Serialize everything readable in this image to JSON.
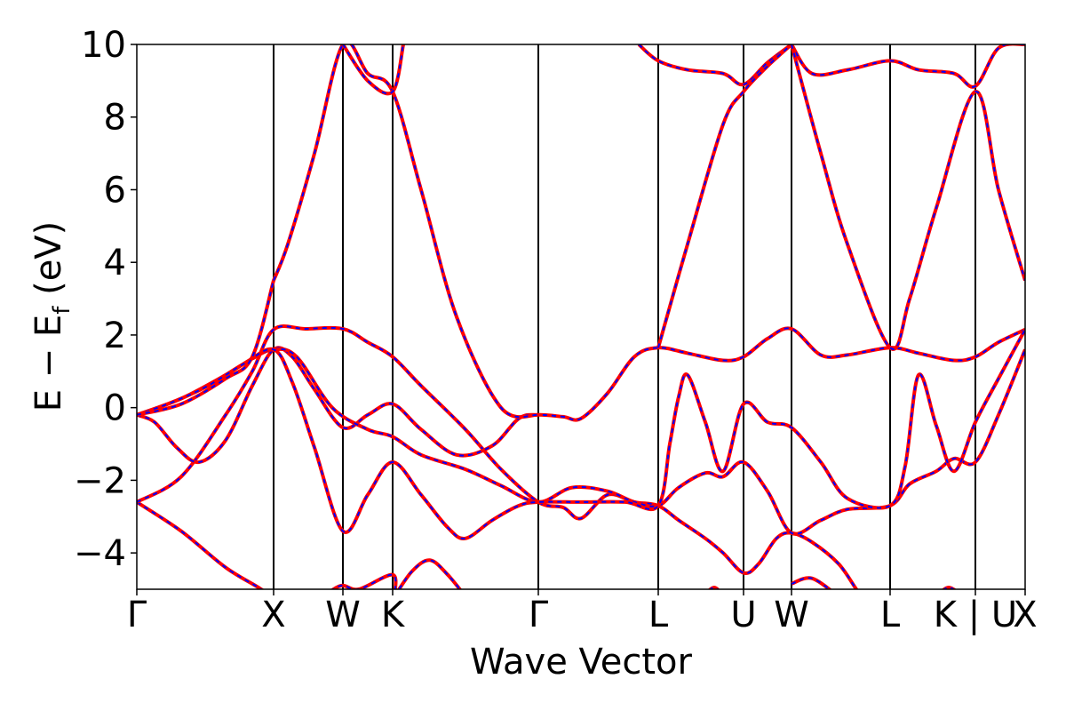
{
  "chart_data": {
    "type": "line",
    "title": "",
    "xlabel": "Wave Vector",
    "ylabel": {
      "main": "E − E",
      "sub": "f",
      "unit": " (eV)"
    },
    "ylim": [
      -5,
      10
    ],
    "xlim": [
      0,
      1
    ],
    "y_ticks": [
      {
        "value": -4,
        "label": "−4"
      },
      {
        "value": -2,
        "label": "−2"
      },
      {
        "value": 0,
        "label": "0"
      },
      {
        "value": 2,
        "label": "2"
      },
      {
        "value": 4,
        "label": "4"
      },
      {
        "value": 6,
        "label": "6"
      },
      {
        "value": 8,
        "label": "8"
      },
      {
        "value": 10,
        "label": "10"
      }
    ],
    "kpoints": [
      {
        "label": "Γ",
        "x": 0.0
      },
      {
        "label": "X",
        "x": 0.154
      },
      {
        "label": "W",
        "x": 0.232
      },
      {
        "label": "K",
        "x": 0.288
      },
      {
        "label": "Γ",
        "x": 0.452
      },
      {
        "label": "L",
        "x": 0.587
      },
      {
        "label": "U",
        "x": 0.683
      },
      {
        "label": "W",
        "x": 0.737
      },
      {
        "label": "L",
        "x": 0.848
      },
      {
        "label": "K | U",
        "x": 0.944
      },
      {
        "label": "X",
        "x": 1.0
      }
    ],
    "line_colors": {
      "outer": "#ff0000",
      "inner": "#0000ff"
    },
    "bands": [
      {
        "name": "band-1",
        "points": [
          [
            0.0,
            -2.6
          ],
          [
            0.05,
            -3.4
          ],
          [
            0.1,
            -4.4
          ],
          [
            0.14,
            -5.0
          ],
          [
            0.16,
            -5.4
          ]
        ]
      },
      {
        "name": "band-2",
        "points": [
          [
            0.0,
            -2.6
          ],
          [
            0.05,
            -1.9
          ],
          [
            0.1,
            -0.2
          ],
          [
            0.13,
            1.0
          ],
          [
            0.154,
            2.15
          ],
          [
            0.19,
            2.17
          ],
          [
            0.232,
            2.17
          ],
          [
            0.26,
            1.8
          ],
          [
            0.288,
            1.4
          ],
          [
            0.32,
            0.6
          ],
          [
            0.37,
            -0.6
          ],
          [
            0.41,
            -1.7
          ],
          [
            0.452,
            -2.6
          ],
          [
            0.48,
            -2.75
          ],
          [
            0.5,
            -3.05
          ],
          [
            0.53,
            -2.4
          ],
          [
            0.56,
            -2.6
          ],
          [
            0.587,
            -2.7
          ],
          [
            0.61,
            -3.1
          ],
          [
            0.64,
            -3.6
          ],
          [
            0.66,
            -4.0
          ],
          [
            0.683,
            -4.55
          ],
          [
            0.7,
            -4.3
          ],
          [
            0.72,
            -3.6
          ],
          [
            0.737,
            -3.45
          ],
          [
            0.76,
            -3.7
          ],
          [
            0.79,
            -4.3
          ],
          [
            0.81,
            -5.0
          ],
          [
            0.82,
            -5.3
          ]
        ]
      },
      {
        "name": "band-3",
        "points": [
          [
            0.0,
            -0.2
          ],
          [
            0.02,
            -0.4
          ],
          [
            0.045,
            -1.1
          ],
          [
            0.07,
            -1.5
          ],
          [
            0.1,
            -0.9
          ],
          [
            0.13,
            0.6
          ],
          [
            0.154,
            1.6
          ],
          [
            0.175,
            1.4
          ],
          [
            0.2,
            0.5
          ],
          [
            0.232,
            -0.55
          ],
          [
            0.26,
            -0.2
          ],
          [
            0.288,
            0.1
          ],
          [
            0.32,
            -0.6
          ],
          [
            0.36,
            -1.3
          ],
          [
            0.4,
            -1.05
          ],
          [
            0.43,
            -0.3
          ],
          [
            0.452,
            -0.2
          ],
          [
            0.48,
            -0.25
          ],
          [
            0.5,
            -0.3
          ],
          [
            0.53,
            0.4
          ],
          [
            0.56,
            1.4
          ],
          [
            0.587,
            1.65
          ],
          [
            0.62,
            1.5
          ],
          [
            0.66,
            1.3
          ],
          [
            0.683,
            1.4
          ],
          [
            0.71,
            1.9
          ],
          [
            0.737,
            2.17
          ],
          [
            0.77,
            1.45
          ],
          [
            0.8,
            1.45
          ],
          [
            0.848,
            1.65
          ],
          [
            0.88,
            1.5
          ],
          [
            0.92,
            1.3
          ],
          [
            0.944,
            1.4
          ],
          [
            0.97,
            1.8
          ],
          [
            1.0,
            2.15
          ]
        ]
      },
      {
        "name": "band-4",
        "points": [
          [
            0.0,
            -0.2
          ],
          [
            0.05,
            0.25
          ],
          [
            0.1,
            0.9
          ],
          [
            0.13,
            1.35
          ],
          [
            0.154,
            1.6
          ],
          [
            0.18,
            1.4
          ],
          [
            0.22,
            0.0
          ],
          [
            0.26,
            -0.6
          ],
          [
            0.288,
            -0.8
          ],
          [
            0.32,
            -1.3
          ],
          [
            0.37,
            -1.7
          ],
          [
            0.41,
            -2.15
          ],
          [
            0.452,
            -2.6
          ],
          [
            0.49,
            -2.2
          ],
          [
            0.53,
            -2.3
          ],
          [
            0.56,
            -2.6
          ],
          [
            0.587,
            -2.7
          ],
          [
            0.61,
            -2.2
          ],
          [
            0.64,
            -1.8
          ],
          [
            0.66,
            -1.9
          ],
          [
            0.683,
            -1.5
          ],
          [
            0.71,
            -2.3
          ],
          [
            0.737,
            -3.45
          ],
          [
            0.77,
            -3.1
          ],
          [
            0.8,
            -2.8
          ],
          [
            0.848,
            -2.7
          ],
          [
            0.87,
            -2.1
          ],
          [
            0.9,
            -1.75
          ],
          [
            0.92,
            -1.4
          ],
          [
            0.944,
            -1.5
          ],
          [
            0.97,
            -0.2
          ],
          [
            1.0,
            1.6
          ]
        ]
      },
      {
        "name": "band-5",
        "points": [
          [
            0.0,
            -0.2
          ],
          [
            0.04,
            0.15
          ],
          [
            0.08,
            0.6
          ],
          [
            0.12,
            1.2
          ],
          [
            0.154,
            1.6
          ],
          [
            0.175,
            0.7
          ],
          [
            0.2,
            -1.1
          ],
          [
            0.232,
            -3.4
          ],
          [
            0.26,
            -2.4
          ],
          [
            0.288,
            -1.5
          ],
          [
            0.32,
            -2.4
          ],
          [
            0.35,
            -3.3
          ],
          [
            0.37,
            -3.6
          ],
          [
            0.4,
            -3.1
          ],
          [
            0.43,
            -2.7
          ],
          [
            0.452,
            -2.6
          ],
          [
            0.5,
            -2.6
          ],
          [
            0.55,
            -2.6
          ],
          [
            0.587,
            -2.7
          ],
          [
            0.6,
            -1.0
          ],
          [
            0.61,
            0.3
          ],
          [
            0.62,
            0.9
          ],
          [
            0.64,
            -0.4
          ],
          [
            0.66,
            -1.75
          ],
          [
            0.683,
            0.1
          ],
          [
            0.71,
            -0.4
          ],
          [
            0.737,
            -0.55
          ],
          [
            0.77,
            -1.5
          ],
          [
            0.8,
            -2.5
          ],
          [
            0.848,
            -2.7
          ],
          [
            0.865,
            -1.6
          ],
          [
            0.88,
            0.9
          ],
          [
            0.9,
            -0.5
          ],
          [
            0.92,
            -1.75
          ],
          [
            0.944,
            -0.4
          ],
          [
            0.97,
            0.8
          ],
          [
            1.0,
            2.15
          ]
        ]
      },
      {
        "name": "band-6",
        "points": [
          [
            0.154,
            3.5
          ],
          [
            0.17,
            4.5
          ],
          [
            0.2,
            7.0
          ],
          [
            0.232,
            10.0
          ],
          [
            0.26,
            9.2
          ],
          [
            0.288,
            8.7
          ],
          [
            0.32,
            6.0
          ],
          [
            0.36,
            2.5
          ],
          [
            0.41,
            0.0
          ],
          [
            0.452,
            -0.2
          ]
        ]
      },
      {
        "name": "band-7",
        "points": [
          [
            0.0,
            -0.2
          ],
          [
            0.05,
            0.1
          ],
          [
            0.1,
            0.8
          ],
          [
            0.13,
            1.4
          ],
          [
            0.154,
            3.5
          ]
        ]
      },
      {
        "name": "band-8",
        "points": [
          [
            0.232,
            10.0
          ],
          [
            0.26,
            9.0
          ],
          [
            0.288,
            8.7
          ],
          [
            0.3,
            10.0
          ]
        ]
      },
      {
        "name": "band-9",
        "points": [
          [
            0.565,
            10.0
          ],
          [
            0.587,
            9.55
          ],
          [
            0.62,
            9.3
          ],
          [
            0.66,
            9.2
          ],
          [
            0.683,
            8.9
          ],
          [
            0.71,
            9.5
          ],
          [
            0.737,
            10.0
          ]
        ]
      },
      {
        "name": "band-10",
        "points": [
          [
            0.587,
            1.65
          ],
          [
            0.62,
            4.5
          ],
          [
            0.66,
            7.8
          ],
          [
            0.683,
            8.7
          ],
          [
            0.71,
            9.4
          ],
          [
            0.737,
            10.0
          ]
        ]
      },
      {
        "name": "band-11",
        "points": [
          [
            0.737,
            10.0
          ],
          [
            0.76,
            9.2
          ],
          [
            0.8,
            9.3
          ],
          [
            0.848,
            9.55
          ],
          [
            0.88,
            9.3
          ],
          [
            0.92,
            9.2
          ],
          [
            0.944,
            8.85
          ],
          [
            0.97,
            9.9
          ],
          [
            1.0,
            10.0
          ]
        ]
      },
      {
        "name": "band-12",
        "points": [
          [
            0.737,
            10.0
          ],
          [
            0.77,
            7.0
          ],
          [
            0.8,
            4.5
          ],
          [
            0.848,
            1.65
          ],
          [
            0.87,
            3.0
          ],
          [
            0.9,
            5.5
          ],
          [
            0.944,
            8.7
          ],
          [
            0.97,
            6.0
          ],
          [
            1.0,
            3.5
          ]
        ]
      },
      {
        "name": "band-13",
        "points": [
          [
            0.29,
            -5.2
          ],
          [
            0.31,
            -4.5
          ],
          [
            0.33,
            -4.2
          ],
          [
            0.35,
            -4.6
          ],
          [
            0.37,
            -5.2
          ]
        ]
      },
      {
        "name": "band-14",
        "points": [
          [
            0.21,
            -5.2
          ],
          [
            0.23,
            -4.9
          ],
          [
            0.25,
            -5.0
          ],
          [
            0.288,
            -4.6
          ],
          [
            0.29,
            -5.2
          ]
        ]
      },
      {
        "name": "band-15",
        "points": [
          [
            0.637,
            -5.2
          ],
          [
            0.65,
            -4.95
          ],
          [
            0.66,
            -5.2
          ]
        ]
      },
      {
        "name": "band-16",
        "points": [
          [
            0.737,
            -4.85
          ],
          [
            0.76,
            -4.7
          ],
          [
            0.79,
            -5.2
          ]
        ]
      },
      {
        "name": "band-17",
        "points": [
          [
            0.9,
            -5.2
          ],
          [
            0.914,
            -4.95
          ],
          [
            0.93,
            -5.2
          ]
        ]
      }
    ]
  }
}
